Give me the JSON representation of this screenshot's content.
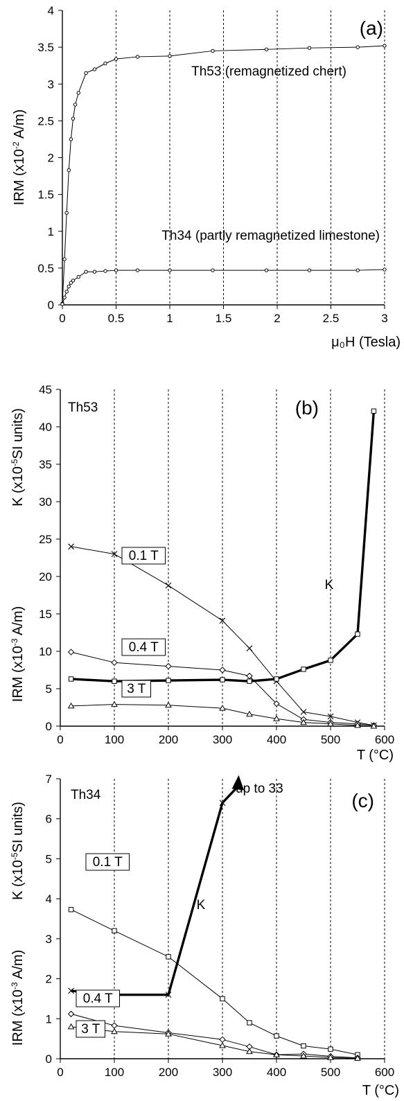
{
  "chart_data": [
    {
      "type": "line",
      "panel_label": "(a)",
      "xlabel": "μ₀H (Tesla)",
      "ylabel": "IRM (x10⁻² A/m)",
      "xlim": [
        0,
        3
      ],
      "ylim": [
        0,
        4
      ],
      "xticks": [
        "0",
        "0.5",
        "1",
        "1.5",
        "2",
        "2.5",
        "3"
      ],
      "yticks": [
        "0",
        "0.5",
        "1",
        "1.5",
        "2",
        "2.5",
        "3",
        "3.5",
        "4"
      ],
      "grid": "vertical dotted",
      "marker": "circle",
      "series": [
        {
          "name": "Th53 (remagnetized chert)",
          "x": [
            0,
            0.02,
            0.04,
            0.06,
            0.08,
            0.1,
            0.12,
            0.15,
            0.22,
            0.3,
            0.4,
            0.5,
            0.7,
            1.0,
            1.4,
            1.9,
            2.3,
            2.75,
            3.0
          ],
          "y": [
            0.02,
            0.62,
            1.25,
            1.83,
            2.25,
            2.53,
            2.72,
            2.88,
            3.15,
            3.2,
            3.28,
            3.34,
            3.37,
            3.38,
            3.45,
            3.47,
            3.49,
            3.5,
            3.52
          ]
        },
        {
          "name": "Th34 (partly remagnetized limestone)",
          "x": [
            0,
            0.02,
            0.04,
            0.06,
            0.08,
            0.1,
            0.15,
            0.22,
            0.3,
            0.4,
            0.5,
            0.7,
            1.0,
            1.4,
            1.9,
            2.3,
            2.75,
            3.0
          ],
          "y": [
            0.01,
            0.1,
            0.18,
            0.25,
            0.3,
            0.33,
            0.38,
            0.45,
            0.45,
            0.46,
            0.47,
            0.47,
            0.47,
            0.47,
            0.47,
            0.47,
            0.47,
            0.48
          ]
        }
      ]
    },
    {
      "type": "line",
      "panel_label": "(b)",
      "sample": "Th53",
      "xlabel": "T (°C)",
      "ylabel_top": "K (x10⁻⁵ SI units)",
      "ylabel_bottom": "IRM (x10⁻³ A/m)",
      "xlim": [
        0,
        600
      ],
      "ylim": [
        0,
        45
      ],
      "xticks": [
        "0",
        "100",
        "200",
        "300",
        "400",
        "500",
        "600"
      ],
      "yticks": [
        "0",
        "5",
        "10",
        "15",
        "20",
        "25",
        "30",
        "35",
        "40",
        "45"
      ],
      "grid": "vertical dotted",
      "series": [
        {
          "name": "0.1 T",
          "marker": "x",
          "weight": "thin",
          "x": [
            20,
            100,
            200,
            300,
            350,
            400,
            450,
            500,
            550,
            580
          ],
          "y": [
            24,
            23,
            18.8,
            14.1,
            10.4,
            6.0,
            1.9,
            1.3,
            0.5,
            0.1
          ]
        },
        {
          "name": "0.4 T",
          "marker": "diamond",
          "weight": "thin",
          "x": [
            20,
            100,
            200,
            300,
            350,
            400,
            450,
            500,
            550,
            580
          ],
          "y": [
            9.9,
            8.5,
            8.0,
            7.5,
            6.7,
            3.0,
            0.9,
            0.5,
            0.3,
            0.1
          ]
        },
        {
          "name": "3 T",
          "marker": "triangle",
          "weight": "thin",
          "x": [
            20,
            100,
            200,
            300,
            350,
            400,
            450,
            500,
            550,
            580
          ],
          "y": [
            2.7,
            2.9,
            2.8,
            2.4,
            1.6,
            1.0,
            0.5,
            0.3,
            0.1,
            0.0
          ]
        },
        {
          "name": "K",
          "marker": "square",
          "weight": "thick",
          "x": [
            20,
            100,
            200,
            300,
            350,
            400,
            450,
            500,
            550,
            580
          ],
          "y": [
            6.3,
            6.0,
            6.1,
            6.2,
            6.0,
            6.3,
            7.6,
            8.8,
            12.3,
            42.1
          ]
        }
      ]
    },
    {
      "type": "line",
      "panel_label": "(c)",
      "sample": "Th34",
      "xlabel": "T (°C)",
      "ylabel_top": "K (x10⁻⁵ SI units)",
      "ylabel_bottom": "IRM (x10⁻³ A/m)",
      "xlim": [
        0,
        600
      ],
      "ylim": [
        0,
        7
      ],
      "xticks": [
        "0",
        "100",
        "200",
        "300",
        "400",
        "500",
        "600"
      ],
      "yticks": [
        "0",
        "1",
        "2",
        "3",
        "4",
        "5",
        "6",
        "7"
      ],
      "grid": "vertical dotted",
      "annotation": "up to 33",
      "series": [
        {
          "name": "0.1 T",
          "marker": "square",
          "weight": "thin",
          "x": [
            20,
            100,
            200,
            300,
            350,
            400,
            450,
            500,
            550
          ],
          "y": [
            3.73,
            3.2,
            2.55,
            1.5,
            0.9,
            0.57,
            0.32,
            0.24,
            0.1
          ]
        },
        {
          "name": "0.4 T",
          "marker": "diamond",
          "weight": "thin",
          "x": [
            20,
            100,
            200,
            300,
            350,
            400,
            450,
            500,
            550
          ],
          "y": [
            1.12,
            0.83,
            0.65,
            0.48,
            0.3,
            0.1,
            0.12,
            0.06,
            0.02
          ]
        },
        {
          "name": "3 T",
          "marker": "triangle",
          "weight": "thin",
          "x": [
            20,
            100,
            200,
            300,
            350,
            400,
            450,
            500,
            550
          ],
          "y": [
            0.8,
            0.68,
            0.62,
            0.33,
            0.18,
            0.1,
            0.07,
            0.03,
            0.01
          ]
        },
        {
          "name": "K",
          "marker": "x",
          "weight": "thick",
          "x": [
            20,
            100,
            200,
            300
          ],
          "y": [
            1.7,
            1.6,
            1.6,
            6.4
          ],
          "arrow_to": [
            330,
            7.0
          ]
        }
      ]
    }
  ]
}
